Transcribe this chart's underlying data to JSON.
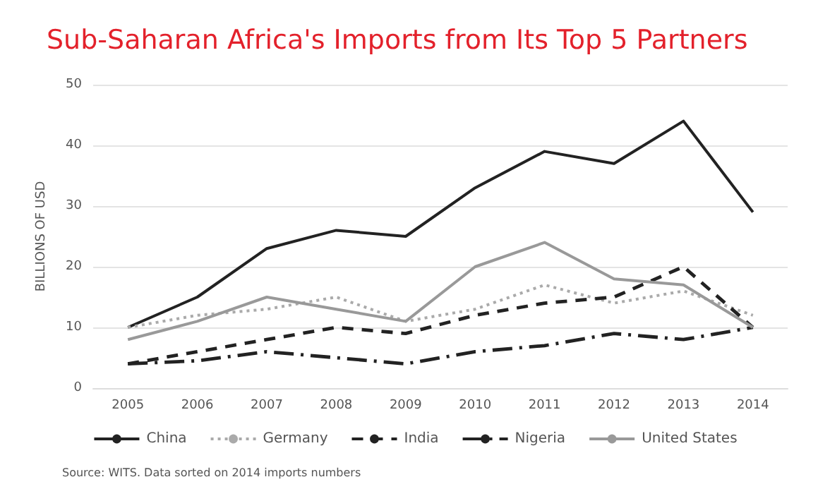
{
  "chart_data": {
    "type": "line",
    "title": "Sub-Saharan Africa's Imports from Its Top 5 Partners",
    "ylabel": "BILLIONS OF USD",
    "categories": [
      "2005",
      "2006",
      "2007",
      "2008",
      "2009",
      "2010",
      "2011",
      "2012",
      "2013",
      "2014"
    ],
    "series": [
      {
        "name": "China",
        "color": "#222222",
        "line_style": "solid",
        "values": [
          10,
          15,
          23,
          26,
          25,
          33,
          39,
          37,
          44,
          29
        ]
      },
      {
        "name": "Germany",
        "color": "#aaaaaa",
        "line_style": "dotted",
        "values": [
          10,
          12,
          13,
          15,
          11,
          13,
          17,
          14,
          16,
          12
        ]
      },
      {
        "name": "India",
        "color": "#222222",
        "line_style": "dashed",
        "values": [
          4,
          6,
          8,
          10,
          9,
          12,
          14,
          15,
          20,
          10
        ]
      },
      {
        "name": "Nigeria",
        "color": "#222222",
        "line_style": "dashdot",
        "values": [
          4,
          4.5,
          6,
          5,
          4,
          6,
          7,
          9,
          8,
          10
        ]
      },
      {
        "name": "United States",
        "color": "#999999",
        "line_style": "solid",
        "values": [
          8,
          11,
          15,
          13,
          11,
          20,
          24,
          18,
          17,
          10
        ]
      }
    ],
    "ylim": [
      0,
      50
    ],
    "yticks": [
      0,
      10,
      20,
      30,
      40,
      50
    ],
    "grid": "y",
    "legend": "bottom",
    "marker": "none",
    "annotations": [
      "Source: WITS. Data sorted on 2014 imports numbers"
    ]
  }
}
